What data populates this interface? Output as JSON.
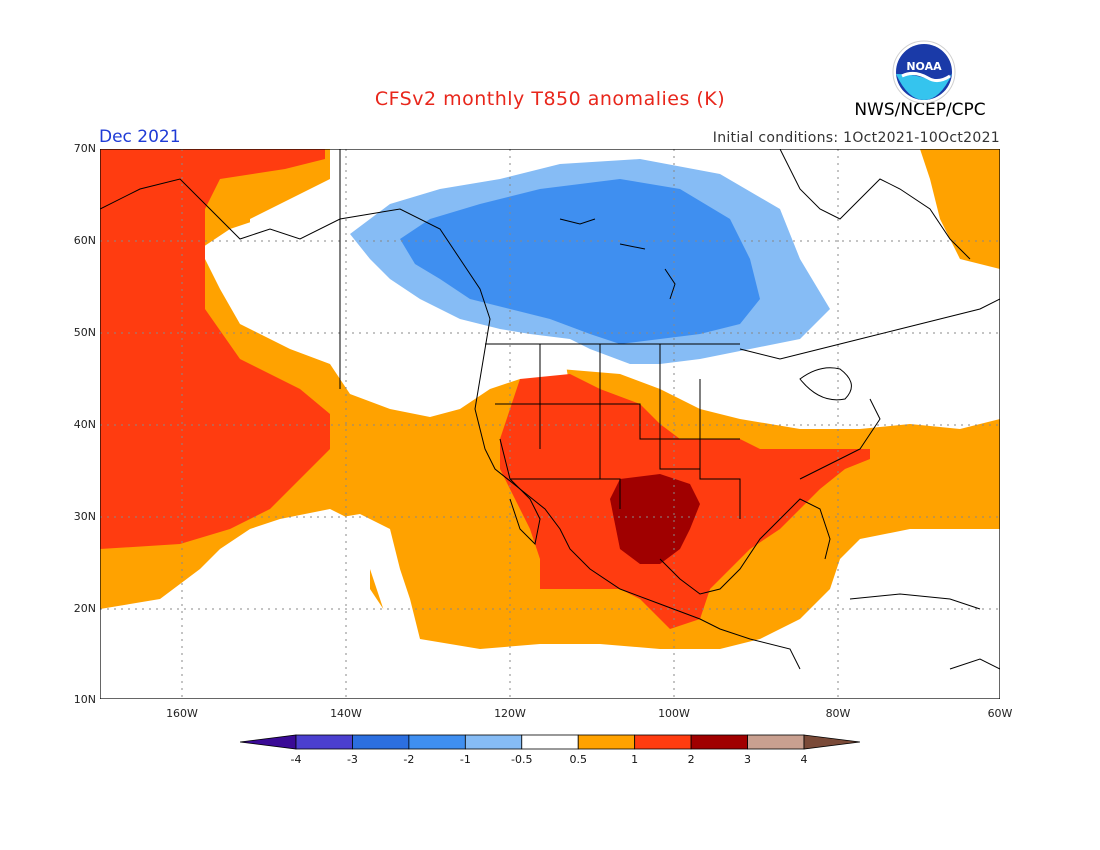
{
  "header": {
    "title": "CFSv2 monthly T850 anomalies (K)",
    "month": "Dec 2021",
    "initial_conditions": "Initial conditions: 1Oct2021-10Oct2021",
    "organization": "NWS/NCEP/CPC",
    "logo_text": "NOAA"
  },
  "axes": {
    "lat_labels": [
      "70N",
      "60N",
      "50N",
      "40N",
      "30N",
      "20N",
      "10N"
    ],
    "lon_labels": [
      "160W",
      "140W",
      "120W",
      "100W",
      "80W",
      "60W"
    ]
  },
  "colorbar": {
    "labels": [
      "-4",
      "-3",
      "-2",
      "-1",
      "-0.5",
      "0.5",
      "1",
      "2",
      "3",
      "4"
    ],
    "colors": [
      "#3a0a96",
      "#4b3fcf",
      "#2c6fe0",
      "#3f8ff0",
      "#86bcf5",
      "#ffffff",
      "#ffa200",
      "#ff3c10",
      "#a00000",
      "#c9a090",
      "#7a4a38"
    ]
  },
  "anomaly_colors": {
    "neg_05_1": "#86bcf5",
    "neg_1_2": "#3f8ff0",
    "pos_05_1": "#ffa200",
    "pos_1_2": "#ff3c10",
    "pos_2_3": "#a00000"
  }
}
